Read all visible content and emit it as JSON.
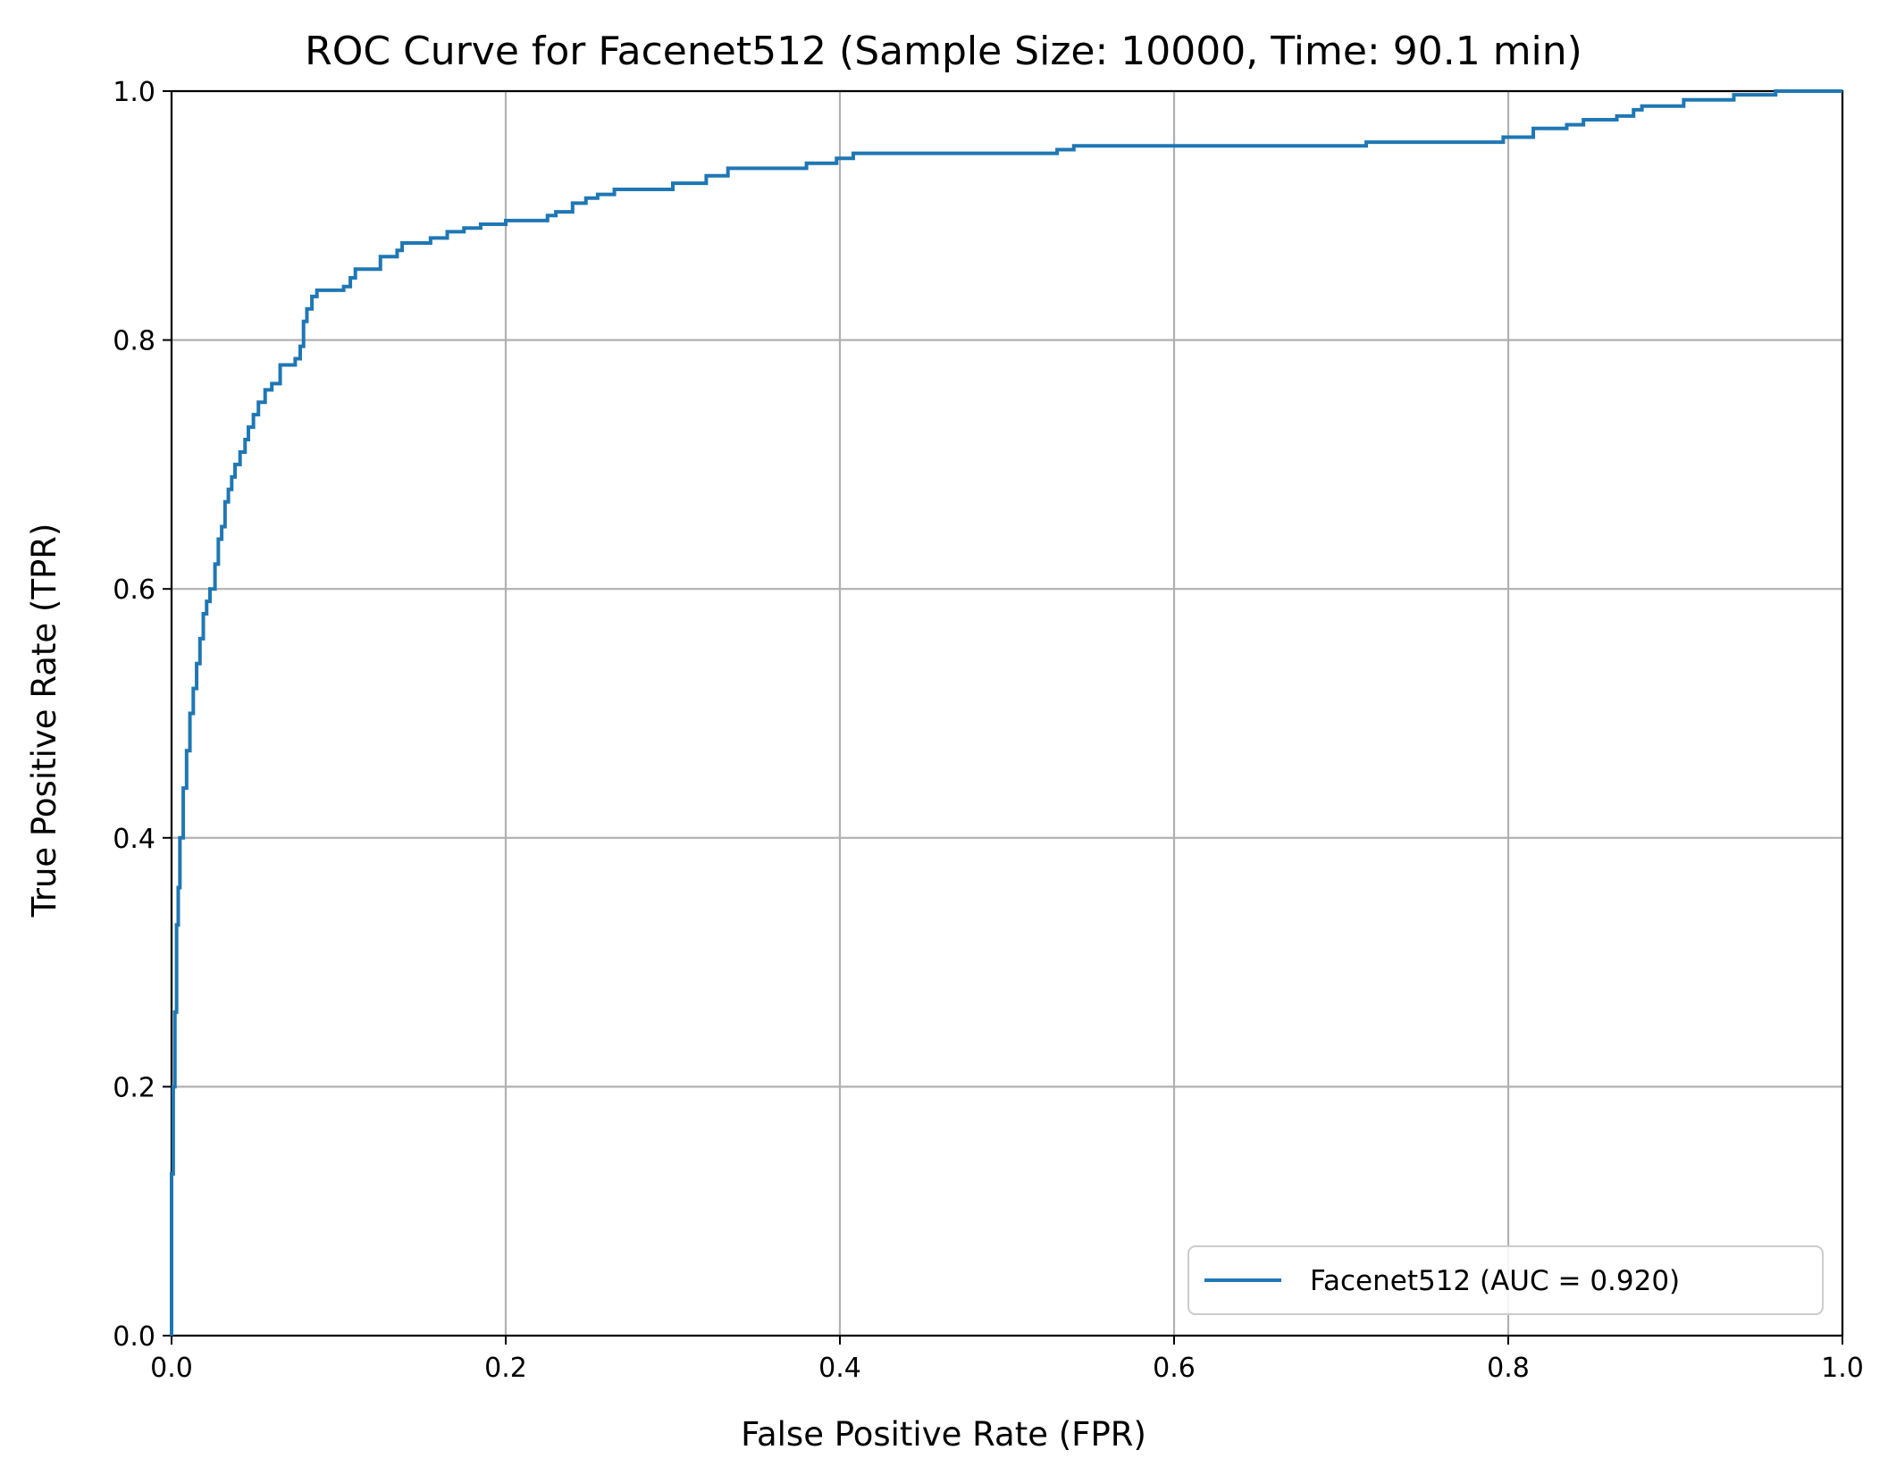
{
  "chart_data": {
    "type": "line",
    "title": "ROC Curve for Facenet512 (Sample Size: 10000, Time: 90.1 min)",
    "xlabel": "False Positive Rate (FPR)",
    "ylabel": "True Positive Rate (TPR)",
    "xlim": [
      0.0,
      1.0
    ],
    "ylim": [
      0.0,
      1.0
    ],
    "x_ticks": [
      "0.0",
      "0.2",
      "0.4",
      "0.6",
      "0.8",
      "1.0"
    ],
    "y_ticks": [
      "0.0",
      "0.2",
      "0.4",
      "0.6",
      "0.8",
      "1.0"
    ],
    "grid": true,
    "legend": "lower-right",
    "series": [
      {
        "name": "Facenet512 (AUC = 0.920)",
        "color": "#1f77b4",
        "step": true,
        "points": [
          [
            0.0,
            0.0
          ],
          [
            0.0,
            0.13
          ],
          [
            0.001,
            0.13
          ],
          [
            0.001,
            0.2
          ],
          [
            0.002,
            0.2
          ],
          [
            0.002,
            0.26
          ],
          [
            0.003,
            0.26
          ],
          [
            0.003,
            0.33
          ],
          [
            0.004,
            0.33
          ],
          [
            0.004,
            0.36
          ],
          [
            0.005,
            0.36
          ],
          [
            0.005,
            0.4
          ],
          [
            0.007,
            0.4
          ],
          [
            0.007,
            0.44
          ],
          [
            0.009,
            0.44
          ],
          [
            0.009,
            0.47
          ],
          [
            0.011,
            0.47
          ],
          [
            0.011,
            0.5
          ],
          [
            0.013,
            0.5
          ],
          [
            0.013,
            0.52
          ],
          [
            0.015,
            0.52
          ],
          [
            0.015,
            0.54
          ],
          [
            0.017,
            0.54
          ],
          [
            0.017,
            0.56
          ],
          [
            0.019,
            0.56
          ],
          [
            0.019,
            0.58
          ],
          [
            0.021,
            0.58
          ],
          [
            0.021,
            0.59
          ],
          [
            0.023,
            0.59
          ],
          [
            0.023,
            0.6
          ],
          [
            0.026,
            0.6
          ],
          [
            0.026,
            0.62
          ],
          [
            0.028,
            0.62
          ],
          [
            0.028,
            0.64
          ],
          [
            0.03,
            0.64
          ],
          [
            0.03,
            0.65
          ],
          [
            0.032,
            0.65
          ],
          [
            0.032,
            0.67
          ],
          [
            0.034,
            0.67
          ],
          [
            0.034,
            0.68
          ],
          [
            0.036,
            0.68
          ],
          [
            0.036,
            0.69
          ],
          [
            0.038,
            0.69
          ],
          [
            0.038,
            0.7
          ],
          [
            0.041,
            0.7
          ],
          [
            0.041,
            0.71
          ],
          [
            0.044,
            0.71
          ],
          [
            0.044,
            0.72
          ],
          [
            0.046,
            0.72
          ],
          [
            0.046,
            0.73
          ],
          [
            0.049,
            0.73
          ],
          [
            0.049,
            0.74
          ],
          [
            0.052,
            0.74
          ],
          [
            0.052,
            0.75
          ],
          [
            0.056,
            0.75
          ],
          [
            0.056,
            0.76
          ],
          [
            0.06,
            0.76
          ],
          [
            0.06,
            0.765
          ],
          [
            0.065,
            0.765
          ],
          [
            0.065,
            0.78
          ],
          [
            0.074,
            0.78
          ],
          [
            0.074,
            0.785
          ],
          [
            0.077,
            0.785
          ],
          [
            0.077,
            0.795
          ],
          [
            0.079,
            0.795
          ],
          [
            0.079,
            0.815
          ],
          [
            0.081,
            0.815
          ],
          [
            0.081,
            0.825
          ],
          [
            0.084,
            0.825
          ],
          [
            0.084,
            0.835
          ],
          [
            0.087,
            0.835
          ],
          [
            0.087,
            0.84
          ],
          [
            0.103,
            0.84
          ],
          [
            0.103,
            0.843
          ],
          [
            0.107,
            0.843
          ],
          [
            0.107,
            0.85
          ],
          [
            0.11,
            0.85
          ],
          [
            0.11,
            0.857
          ],
          [
            0.125,
            0.857
          ],
          [
            0.125,
            0.867
          ],
          [
            0.135,
            0.867
          ],
          [
            0.135,
            0.872
          ],
          [
            0.138,
            0.872
          ],
          [
            0.138,
            0.878
          ],
          [
            0.155,
            0.878
          ],
          [
            0.155,
            0.882
          ],
          [
            0.165,
            0.882
          ],
          [
            0.165,
            0.887
          ],
          [
            0.175,
            0.887
          ],
          [
            0.175,
            0.89
          ],
          [
            0.185,
            0.89
          ],
          [
            0.185,
            0.893
          ],
          [
            0.2,
            0.893
          ],
          [
            0.2,
            0.896
          ],
          [
            0.225,
            0.896
          ],
          [
            0.225,
            0.9
          ],
          [
            0.23,
            0.9
          ],
          [
            0.23,
            0.903
          ],
          [
            0.24,
            0.903
          ],
          [
            0.24,
            0.91
          ],
          [
            0.248,
            0.91
          ],
          [
            0.248,
            0.914
          ],
          [
            0.255,
            0.914
          ],
          [
            0.255,
            0.917
          ],
          [
            0.265,
            0.917
          ],
          [
            0.265,
            0.921
          ],
          [
            0.3,
            0.921
          ],
          [
            0.3,
            0.926
          ],
          [
            0.32,
            0.926
          ],
          [
            0.32,
            0.932
          ],
          [
            0.333,
            0.932
          ],
          [
            0.333,
            0.938
          ],
          [
            0.38,
            0.938
          ],
          [
            0.38,
            0.942
          ],
          [
            0.398,
            0.942
          ],
          [
            0.398,
            0.946
          ],
          [
            0.408,
            0.946
          ],
          [
            0.408,
            0.95
          ],
          [
            0.53,
            0.95
          ],
          [
            0.53,
            0.953
          ],
          [
            0.54,
            0.953
          ],
          [
            0.54,
            0.956
          ],
          [
            0.715,
            0.956
          ],
          [
            0.715,
            0.959
          ],
          [
            0.797,
            0.959
          ],
          [
            0.797,
            0.963
          ],
          [
            0.815,
            0.963
          ],
          [
            0.815,
            0.97
          ],
          [
            0.835,
            0.97
          ],
          [
            0.835,
            0.973
          ],
          [
            0.845,
            0.973
          ],
          [
            0.845,
            0.977
          ],
          [
            0.865,
            0.977
          ],
          [
            0.865,
            0.98
          ],
          [
            0.875,
            0.98
          ],
          [
            0.875,
            0.985
          ],
          [
            0.88,
            0.985
          ],
          [
            0.88,
            0.988
          ],
          [
            0.905,
            0.988
          ],
          [
            0.905,
            0.993
          ],
          [
            0.935,
            0.993
          ],
          [
            0.935,
            0.997
          ],
          [
            0.96,
            0.997
          ],
          [
            0.96,
            1.0
          ],
          [
            1.0,
            1.0
          ]
        ]
      }
    ]
  }
}
